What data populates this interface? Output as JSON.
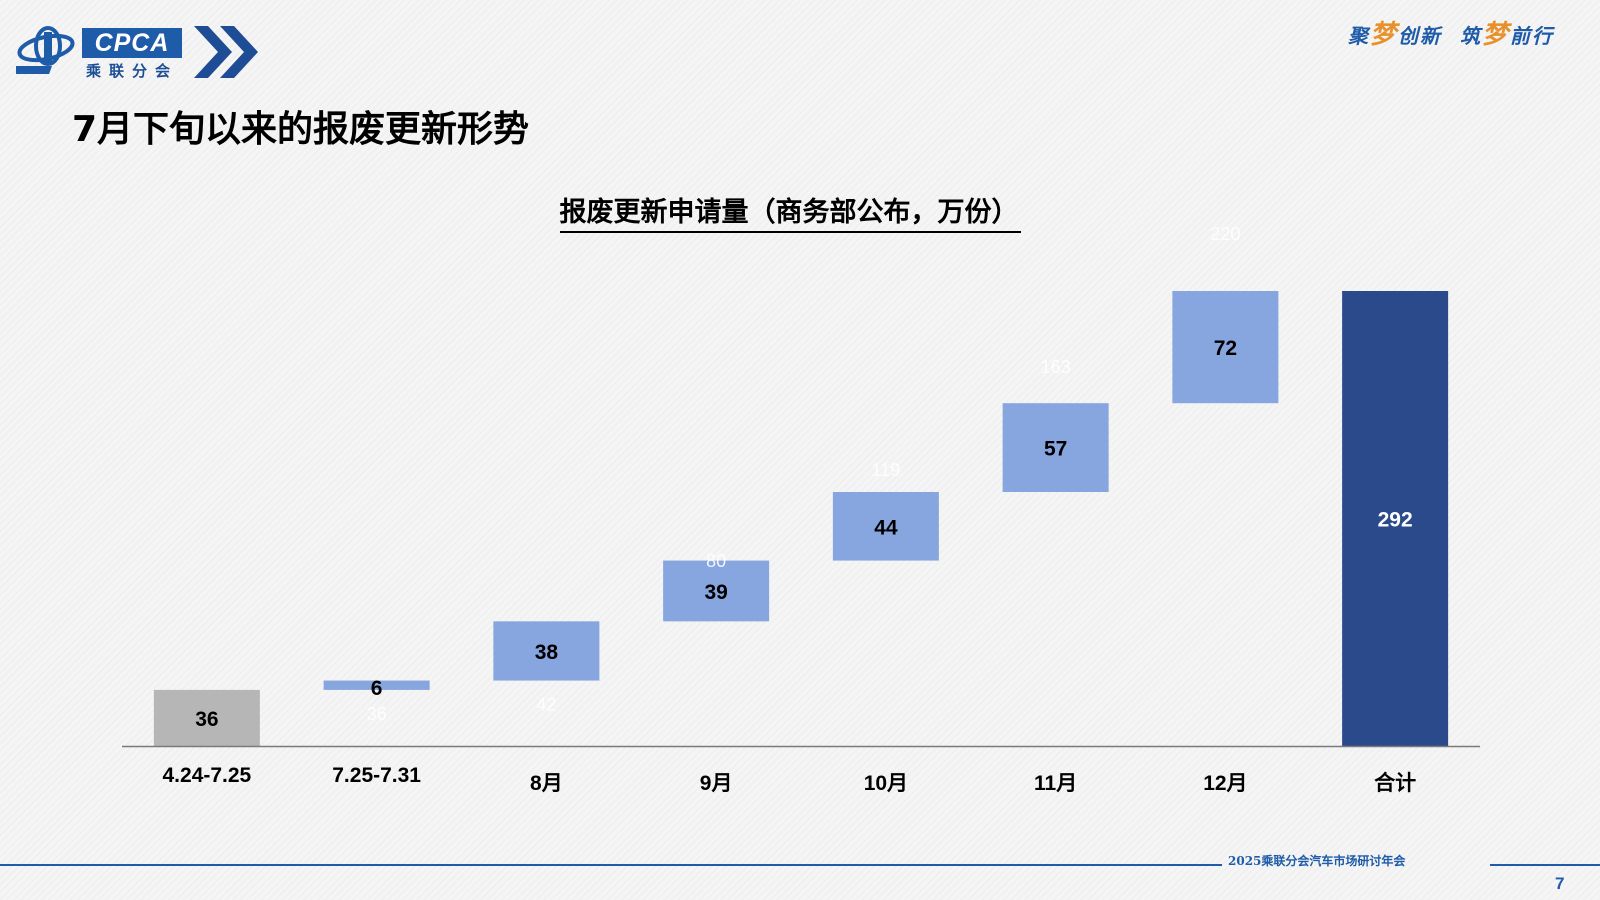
{
  "header": {
    "logo_text": "CPCA",
    "logo_cn": "乘联分会",
    "slogan_1a": "聚",
    "slogan_1m": "梦",
    "slogan_1b": "创新",
    "slogan_2a": "筑",
    "slogan_2m": "梦",
    "slogan_2b": "前行"
  },
  "page": {
    "title": "7月下旬以来的报废更新形势",
    "footer": "2025乘联分会汽车市场研讨年会",
    "number": "7"
  },
  "colors": {
    "gray": "#b6b6b6",
    "light_blue": "#87a5de",
    "dark_blue": "#2a4a8c",
    "base_label": "#ffffff"
  },
  "chart_data": {
    "type": "bar",
    "subtype": "waterfall",
    "title": "报废更新申请量（商务部公布，万份）",
    "categories": [
      "4.24-7.25",
      "7.25-7.31",
      "8月",
      "9月",
      "10月",
      "11月",
      "12月",
      "合计"
    ],
    "values": [
      36,
      6,
      38,
      39,
      44,
      57,
      72,
      292
    ],
    "bases": [
      0,
      36,
      42,
      80,
      119,
      163,
      220,
      0
    ],
    "bar_kinds": [
      "initial",
      "increment",
      "increment",
      "increment",
      "increment",
      "increment",
      "increment",
      "total"
    ],
    "ylim": [
      0,
      292
    ],
    "grid": false,
    "legend": false
  }
}
